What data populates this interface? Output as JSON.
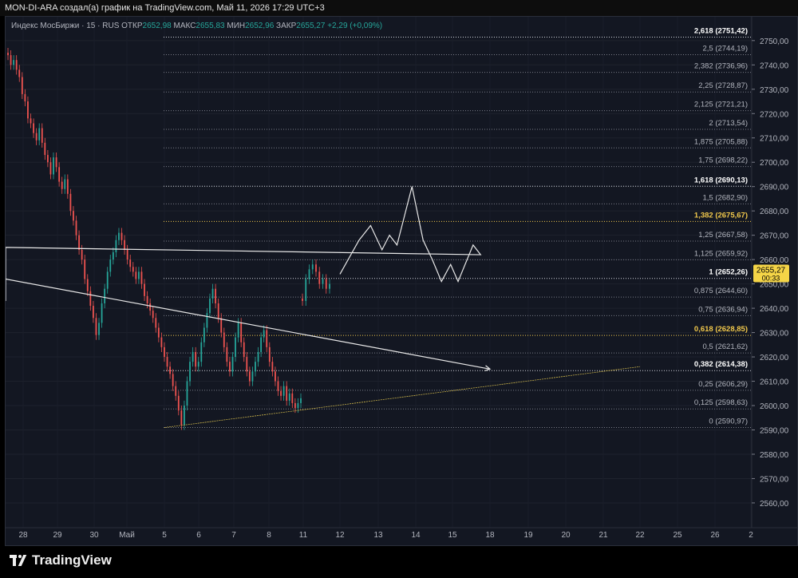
{
  "header": {
    "title": "MON-DI-ARA создал(а) график на TradingView.com, Май 11, 2026 17:29 UTC+3"
  },
  "legend": {
    "symbol": "Индекс МосБиржи · 15 · RUS",
    "open_label": "ОТКР",
    "open": "2652,98",
    "high_label": "МАКС",
    "high": "2655,83",
    "low_label": "МИН",
    "low": "2652,96",
    "close_label": "ЗАКР",
    "close": "2655,27",
    "change": "+2,29 (+0,09%)"
  },
  "colors": {
    "background": "#131722",
    "up": "#26a69a",
    "down": "#ef5350",
    "fib_highlight": "#f2c94c",
    "price_tag": "#f5d547"
  },
  "brand": {
    "name": "TradingView"
  },
  "price_tag": {
    "price": "2655,27",
    "countdown": "00:33"
  },
  "chart_data": {
    "type": "line",
    "title": "",
    "y_axis": {
      "min": 2555,
      "max": 2755,
      "ticks": [
        2560,
        2570,
        2580,
        2590,
        2600,
        2610,
        2620,
        2630,
        2640,
        2650,
        2660,
        2670,
        2680,
        2690,
        2700,
        2710,
        2720,
        2730,
        2740,
        2750
      ],
      "tick_labels": [
        "2560,00",
        "2570,00",
        "2580,00",
        "2590,00",
        "2600,00",
        "2610,00",
        "2620,00",
        "2630,00",
        "2640,00",
        "2650,00",
        "2660,00",
        "2670,00",
        "2680,00",
        "2690,00",
        "2700,00",
        "2710,00",
        "2720,00",
        "2730,00",
        "2740,00",
        "2750,00"
      ]
    },
    "x_axis": {
      "labels": [
        "28",
        "29",
        "30",
        "Май",
        "5",
        "6",
        "7",
        "8",
        "11",
        "12",
        "13",
        "14",
        "15",
        "18",
        "19",
        "20",
        "21",
        "22",
        "25",
        "26",
        "2"
      ]
    },
    "fib_levels": [
      {
        "label": "0 (2590,97)",
        "price": 2590.97,
        "highlight": false
      },
      {
        "label": "0,125 (2598,63)",
        "price": 2598.63,
        "highlight": false
      },
      {
        "label": "0,25 (2606,29)",
        "price": 2606.29,
        "highlight": false
      },
      {
        "label": "0,382 (2614,38)",
        "price": 2614.38,
        "highlight": false,
        "bold": true
      },
      {
        "label": "0,5 (2621,62)",
        "price": 2621.62,
        "highlight": false
      },
      {
        "label": "0,618 (2628,85)",
        "price": 2628.85,
        "highlight": true
      },
      {
        "label": "0,75 (2636,94)",
        "price": 2636.94,
        "highlight": false
      },
      {
        "label": "0,875 (2644,60)",
        "price": 2644.6,
        "highlight": false
      },
      {
        "label": "1 (2652,26)",
        "price": 2652.26,
        "highlight": false,
        "bold": true
      },
      {
        "label": "1,125 (2659,92)",
        "price": 2659.92,
        "highlight": false
      },
      {
        "label": "1,25 (2667,58)",
        "price": 2667.58,
        "highlight": false
      },
      {
        "label": "1,382 (2675,67)",
        "price": 2675.67,
        "highlight": true
      },
      {
        "label": "1,5 (2682,90)",
        "price": 2682.9,
        "highlight": false
      },
      {
        "label": "1,618 (2690,13)",
        "price": 2690.13,
        "highlight": false,
        "bold": true
      },
      {
        "label": "1,75 (2698,22)",
        "price": 2698.22,
        "highlight": false
      },
      {
        "label": "1,875 (2705,88)",
        "price": 2705.88,
        "highlight": false
      },
      {
        "label": "2 (2713,54)",
        "price": 2713.54,
        "highlight": false
      },
      {
        "label": "2,125 (2721,21)",
        "price": 2721.21,
        "highlight": false
      },
      {
        "label": "2,25 (2728,87)",
        "price": 2728.87,
        "highlight": false
      },
      {
        "label": "2,382 (2736,96)",
        "price": 2736.96,
        "highlight": false
      },
      {
        "label": "2,5 (2744,19)",
        "price": 2744.19,
        "highlight": false
      },
      {
        "label": "2,618 (2751,42)",
        "price": 2751.42,
        "highlight": false,
        "bold": true
      }
    ],
    "price_path": [
      [
        2744,
        2740,
        2742,
        2738,
        2735,
        2728,
        2725,
        2718,
        2716,
        2712,
        2709,
        2714,
        2708,
        2703,
        2700,
        2695,
        2702,
        2698,
        2692,
        2689,
        2693,
        2687,
        2680,
        2676,
        2670,
        2664,
        2660,
        2652,
        2647,
        2641,
        2636,
        2629,
        2634,
        2642,
        2648,
        2655,
        2660,
        2663,
        2668,
        2671,
        2668,
        2664,
        2660,
        2657,
        2655,
        2652,
        2655,
        2650,
        2645,
        2642,
        2639,
        2636,
        2632,
        2628,
        2624,
        2620,
        2616,
        2613,
        2608,
        2604,
        2598,
        2592,
        2600,
        2610,
        2618,
        2622,
        2616,
        2618,
        2626,
        2632,
        2638,
        2644,
        2648,
        2642,
        2636,
        2630,
        2624,
        2618,
        2614,
        2620,
        2628,
        2634,
        2626,
        2620,
        2614,
        2610,
        2614,
        2618,
        2622,
        2628,
        2631,
        2624,
        2618,
        2614,
        2610,
        2606,
        2604,
        2608,
        2602,
        2605,
        2601,
        2599,
        2601,
        2603
      ],
      [
        2643,
        2652,
        2656,
        2658,
        2655,
        2650,
        2652,
        2648,
        2650
      ]
    ],
    "projection": [
      [
        2654,
        "12"
      ],
      [
        2668,
        "12.5"
      ],
      [
        2674,
        "12.8"
      ],
      [
        2664,
        "13.1"
      ],
      [
        2670,
        "13.3"
      ],
      [
        2666,
        "13.5"
      ],
      [
        2690,
        "13.9"
      ],
      [
        2668,
        "14.2"
      ],
      [
        2660,
        "14.45"
      ],
      [
        2651,
        "14.7"
      ],
      [
        2658,
        "14.95"
      ],
      [
        2651,
        "15.15"
      ],
      [
        2666,
        "15.55"
      ],
      [
        2662,
        "15.75"
      ],
      [
        2665,
        "16"
      ],
      [
        2643,
        "16.3"
      ],
      [
        2645,
        "16.55"
      ],
      [
        2649,
        "16.8"
      ],
      [
        2646,
        "17.05"
      ],
      [
        2652,
        "17.3"
      ],
      [
        2615,
        "18"
      ]
    ],
    "trendline": {
      "from": {
        "x": "5",
        "price": 2590.97
      },
      "to": {
        "x": "22",
        "price": 2616
      }
    }
  }
}
